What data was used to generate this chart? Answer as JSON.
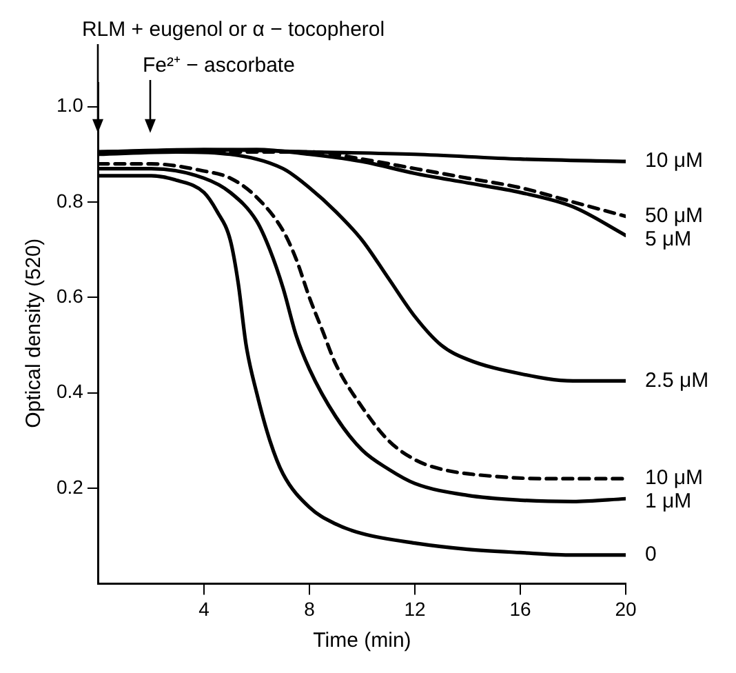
{
  "chart_data": {
    "type": "line",
    "xlabel": "Time (min)",
    "ylabel": "Optical density (520)",
    "xlim": [
      0,
      20
    ],
    "xticks": [
      4,
      8,
      12,
      16,
      20
    ],
    "ylim": [
      0,
      1.05
    ],
    "yticks": [
      0.2,
      0.4,
      0.6,
      0.8,
      {
        "value": 1.0,
        "label": "1.0"
      }
    ],
    "grid": false,
    "legend": false,
    "marker": "none",
    "annotations": [
      "RLM + eugenol or α − tocopherol",
      "Fe²⁺ − ascorbate"
    ],
    "series": [
      {
        "name": "10 μM",
        "color": "#000000",
        "line_style": "solid",
        "x": [
          0,
          4,
          8,
          12,
          16,
          20
        ],
        "values": [
          0.905,
          0.91,
          0.905,
          0.9,
          0.89,
          0.885
        ]
      },
      {
        "name": "50 μM",
        "color": "#000000",
        "line_style": "dashed",
        "x": [
          0,
          8,
          10,
          12,
          14,
          16,
          18,
          20
        ],
        "values": [
          0.905,
          0.905,
          0.89,
          0.87,
          0.85,
          0.83,
          0.8,
          0.77
        ]
      },
      {
        "name": "5 μM",
        "color": "#000000",
        "line_style": "solid",
        "x": [
          0,
          6,
          8,
          10,
          12,
          14,
          16,
          18,
          20
        ],
        "values": [
          0.905,
          0.91,
          0.9,
          0.885,
          0.86,
          0.84,
          0.82,
          0.79,
          0.73
        ]
      },
      {
        "name": "2.5 μM",
        "color": "#000000",
        "line_style": "solid",
        "x": [
          0,
          3,
          5,
          7,
          8,
          9,
          10,
          11,
          12,
          13,
          14,
          16,
          18,
          20
        ],
        "values": [
          0.9,
          0.905,
          0.9,
          0.87,
          0.83,
          0.78,
          0.72,
          0.64,
          0.56,
          0.5,
          0.47,
          0.44,
          0.425,
          0.425
        ]
      },
      {
        "name": "10 μM",
        "color": "#000000",
        "line_style": "dashed",
        "x": [
          0,
          2,
          4,
          5,
          6,
          7,
          7.5,
          8,
          8.5,
          9,
          10,
          11,
          12,
          13,
          15,
          17,
          20
        ],
        "values": [
          0.88,
          0.88,
          0.865,
          0.85,
          0.81,
          0.74,
          0.68,
          0.6,
          0.53,
          0.46,
          0.37,
          0.3,
          0.26,
          0.24,
          0.225,
          0.22,
          0.22
        ]
      },
      {
        "name": "1 μM",
        "color": "#000000",
        "line_style": "solid",
        "x": [
          0,
          2,
          4,
          5,
          6,
          6.5,
          7,
          7.5,
          8,
          9,
          10,
          11,
          12,
          14,
          16,
          18,
          20
        ],
        "values": [
          0.87,
          0.87,
          0.85,
          0.82,
          0.76,
          0.7,
          0.62,
          0.52,
          0.45,
          0.35,
          0.28,
          0.24,
          0.21,
          0.185,
          0.175,
          0.172,
          0.178
        ]
      },
      {
        "name": "0",
        "color": "#000000",
        "line_style": "solid",
        "x": [
          0,
          2,
          3,
          4,
          4.5,
          5,
          5.3,
          5.6,
          6,
          6.5,
          7,
          8,
          9,
          10,
          12,
          14,
          16,
          18,
          20
        ],
        "values": [
          0.855,
          0.855,
          0.845,
          0.82,
          0.78,
          0.72,
          0.63,
          0.5,
          0.4,
          0.3,
          0.23,
          0.16,
          0.125,
          0.105,
          0.085,
          0.072,
          0.065,
          0.06,
          0.06
        ]
      }
    ]
  }
}
